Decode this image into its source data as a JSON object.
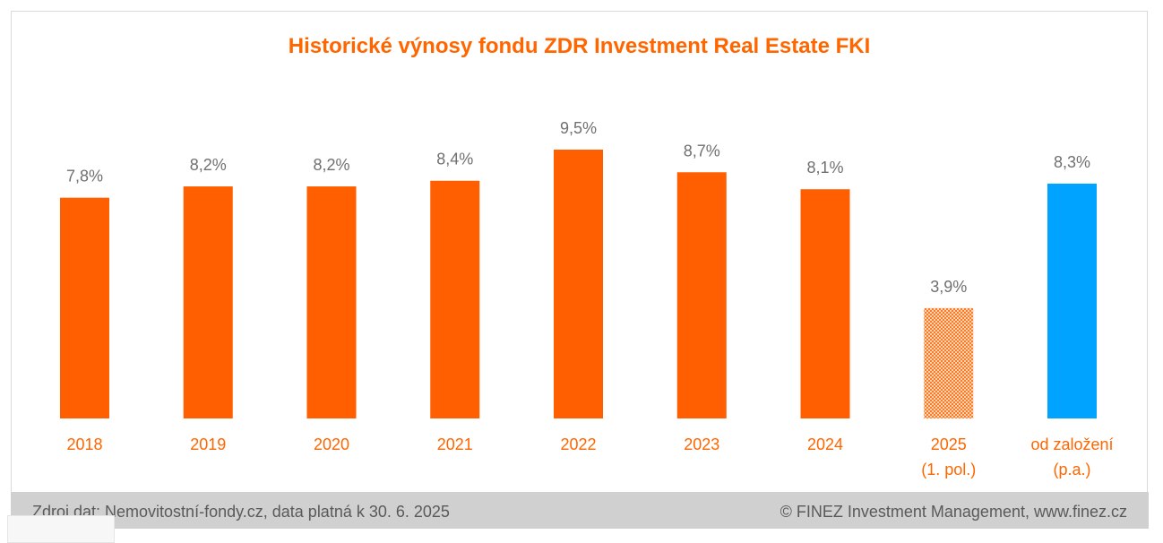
{
  "title": "Historické výnosy fondu ZDR Investment Real Estate FKI",
  "footer": {
    "source": "Zdroj dat: Nemovitostní-fondy.cz, data platná k 30. 6. 2025",
    "copyright": "© FINEZ Investment Management, www.finez.cz"
  },
  "colors": {
    "bar": "#ff5f00",
    "bar_partial": "#ff8c3c",
    "bar_since_inception": "#00a3ff",
    "category_text": "#ff6600",
    "value_text": "#707070"
  },
  "chart_data": {
    "type": "bar",
    "title": "Historické výnosy fondu ZDR Investment Real Estate FKI",
    "categories": [
      [
        "2018"
      ],
      [
        "2019"
      ],
      [
        "2020"
      ],
      [
        "2021"
      ],
      [
        "2022"
      ],
      [
        "2023"
      ],
      [
        "2024"
      ],
      [
        "2025",
        "(1. pol.)"
      ],
      [
        "od založení",
        "(p.a.)"
      ]
    ],
    "values": [
      7.8,
      8.2,
      8.2,
      8.4,
      9.5,
      8.7,
      8.1,
      3.9,
      8.3
    ],
    "value_labels": [
      "7,8%",
      "8,2%",
      "8,2%",
      "8,4%",
      "9,5%",
      "8,7%",
      "8,1%",
      "3,9%",
      "8,3%"
    ],
    "styles": [
      "solid",
      "solid",
      "solid",
      "solid",
      "solid",
      "solid",
      "solid",
      "hatched",
      "blue"
    ],
    "unit": "%",
    "ylim": [
      0,
      9.5
    ],
    "grid": false,
    "legend": "none"
  }
}
